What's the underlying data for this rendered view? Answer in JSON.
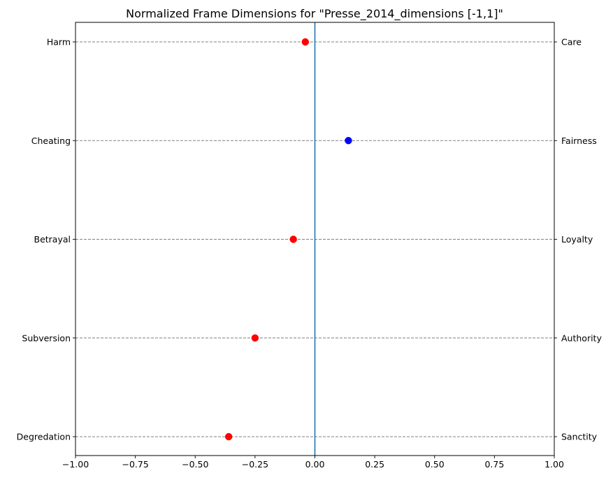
{
  "chart_data": {
    "type": "scatter",
    "title": "Normalized Frame Dimensions for \"Presse_2014_dimensions [-1,1]\"",
    "xlabel": "",
    "ylabel": "",
    "xlim": [
      -1,
      1
    ],
    "x_ticks": [
      "−1.00",
      "−0.75",
      "−0.50",
      "−0.25",
      "0.00",
      "0.25",
      "0.50",
      "0.75",
      "1.00"
    ],
    "x_tick_values": [
      -1,
      -0.75,
      -0.5,
      -0.25,
      0,
      0.25,
      0.5,
      0.75,
      1
    ],
    "left_labels": [
      "Harm",
      "Cheating",
      "Betrayal",
      "Subversion",
      "Degredation"
    ],
    "right_labels": [
      "Care",
      "Fairness",
      "Loyalty",
      "Authority",
      "Sanctity"
    ],
    "values": [
      -0.04,
      0.14,
      -0.09,
      -0.25,
      -0.36
    ],
    "colors": {
      "negative": "#ff0000",
      "positive": "#0000ff",
      "zero_line": "#1f77b4",
      "grid": "#808080"
    },
    "grid": "horizontal dashed"
  }
}
